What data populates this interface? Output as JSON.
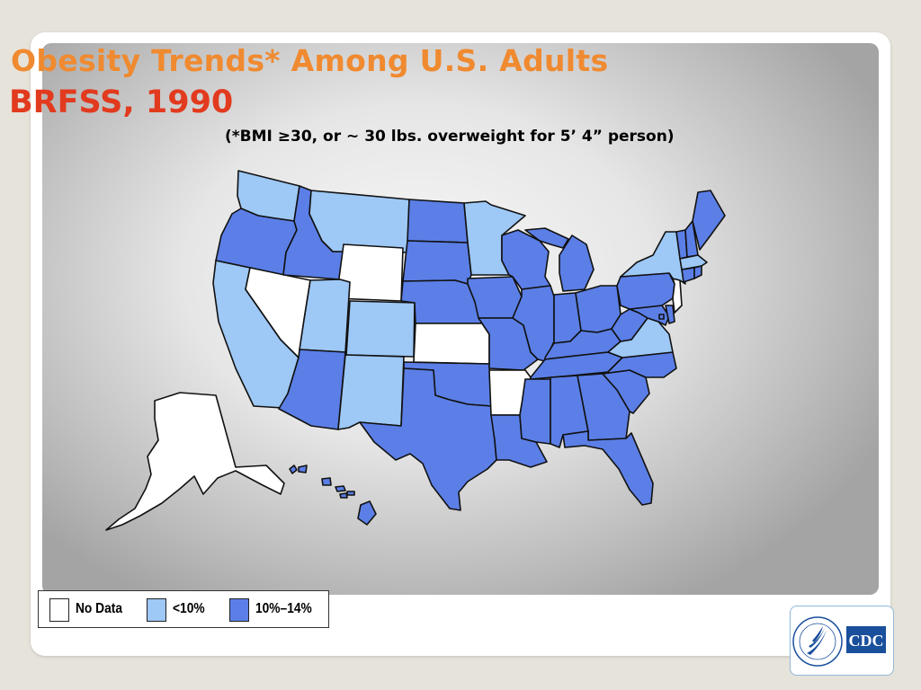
{
  "slide": {
    "title_line1": "Obesity Trends* Among U.S. Adults",
    "title_line2": "BRFSS, 1990",
    "subtitle": "(*BMI ≥30, or ~ 30 lbs. overweight for 5’ 4” person)"
  },
  "colors": {
    "no_data": "#ffffff",
    "under_10": "#9ec8f5",
    "10_14": "#5b7fe6",
    "title_orange": "#f08a30",
    "title_red": "#e23a1e",
    "state_border": "#111111"
  },
  "legend": {
    "items": [
      {
        "label": "No Data",
        "color": "#ffffff",
        "category": "no_data"
      },
      {
        "label": "<10%",
        "color": "#9ec8f5",
        "category": "under_10"
      },
      {
        "label": "10%–14%",
        "color": "#5b7fe6",
        "category": "10_14"
      }
    ]
  },
  "map": {
    "states": {
      "WA": "under_10",
      "OR": "10_14",
      "CA": "under_10",
      "NV": "no_data",
      "ID": "10_14",
      "MT": "under_10",
      "WY": "no_data",
      "UT": "under_10",
      "CO": "under_10",
      "AZ": "10_14",
      "NM": "under_10",
      "ND": "10_14",
      "SD": "10_14",
      "NE": "10_14",
      "KS": "no_data",
      "OK": "10_14",
      "TX": "10_14",
      "MN": "under_10",
      "IA": "10_14",
      "MO": "10_14",
      "AR": "no_data",
      "LA": "10_14",
      "WI": "10_14",
      "IL": "10_14",
      "MI": "10_14",
      "IN": "10_14",
      "OH": "10_14",
      "KY": "10_14",
      "TN": "10_14",
      "MS": "10_14",
      "AL": "10_14",
      "GA": "10_14",
      "FL": "10_14",
      "SC": "10_14",
      "NC": "10_14",
      "VA": "under_10",
      "WV": "10_14",
      "PA": "10_14",
      "NY": "under_10",
      "ME": "10_14",
      "VT": "10_14",
      "NH": "10_14",
      "MA": "under_10",
      "CT": "10_14",
      "RI": "10_14",
      "NJ": "no_data",
      "DE": "10_14",
      "MD": "10_14",
      "DC": "10_14",
      "AK": "no_data",
      "HI": "10_14"
    }
  },
  "logo": {
    "text": "CDC",
    "seal_text": "DEPARTMENT OF HEALTH & HUMAN SERVICES USA"
  }
}
